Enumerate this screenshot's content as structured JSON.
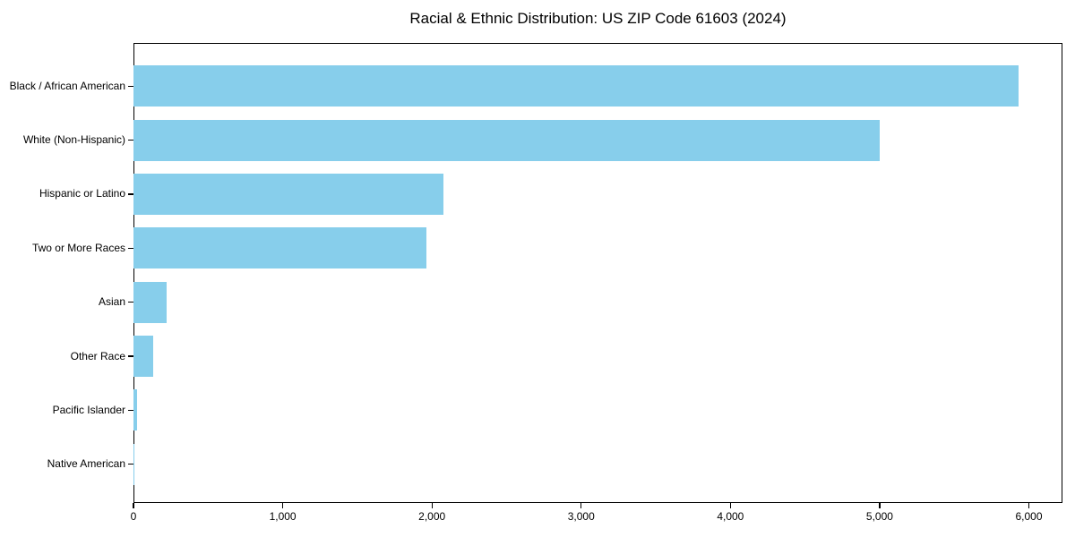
{
  "figure": {
    "title": "Racial & Ethnic Distribution: US ZIP Code 61603 (2024)",
    "background_color": "#FFFFFF"
  },
  "chart_data": {
    "type": "bar",
    "orientation": "horizontal",
    "title": "Racial & Ethnic Distribution: US ZIP Code 61603 (2024)",
    "categories": [
      "Black / African American",
      "White (Non-Hispanic)",
      "Hispanic or Latino",
      "Two or More Races",
      "Asian",
      "Other Race",
      "Pacific Islander",
      "Native American"
    ],
    "values": [
      5930,
      5000,
      2080,
      1965,
      220,
      130,
      25,
      4
    ],
    "xlabel": "",
    "ylabel": "",
    "xlim": [
      0,
      6225
    ],
    "xticks": [
      0,
      1000,
      2000,
      3000,
      4000,
      5000,
      6000
    ],
    "xtick_labels": [
      "0",
      "1,000",
      "2,000",
      "3,000",
      "4,000",
      "5,000",
      "6,000"
    ],
    "grid": false,
    "legend": false,
    "bar_color": "#87CEEB",
    "axis_color": "#000000",
    "text_color": "#000000"
  }
}
